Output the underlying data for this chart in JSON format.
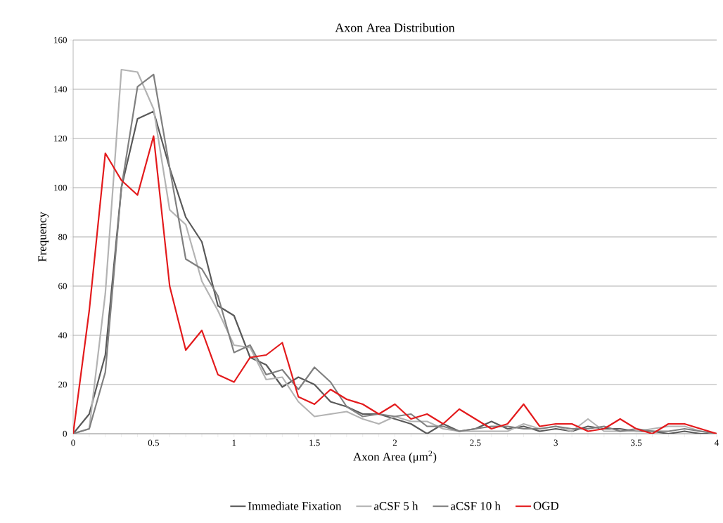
{
  "chart_data": {
    "type": "line",
    "title": "Axon Area Distribution",
    "xlabel": "Axon Area (μm$^{2}$)",
    "ylabel": "Frequency",
    "x": [
      0,
      0.1,
      0.2,
      0.3,
      0.4,
      0.5,
      0.6,
      0.7,
      0.8,
      0.9,
      1.0,
      1.1,
      1.2,
      1.3,
      1.4,
      1.5,
      1.6,
      1.7,
      1.8,
      1.9,
      2.0,
      2.1,
      2.2,
      2.3,
      2.4,
      2.5,
      2.6,
      2.7,
      2.8,
      2.9,
      3.0,
      3.1,
      3.2,
      3.3,
      3.4,
      3.5,
      3.6,
      3.7,
      3.8,
      3.9,
      4.0
    ],
    "series": [
      {
        "name": "Immediate Fixation",
        "color": "#595959",
        "values": [
          0,
          8,
          32,
          100,
          128,
          131,
          108,
          88,
          78,
          52,
          48,
          31,
          28,
          19,
          23,
          20,
          13,
          11,
          8,
          8,
          6,
          4,
          0,
          4,
          1,
          2,
          5,
          2,
          3,
          1,
          2,
          1,
          3,
          2,
          2,
          1,
          1,
          0,
          1,
          0,
          0
        ]
      },
      {
        "name": "aCSF 5 h",
        "color": "#b3b3b3",
        "values": [
          0,
          2,
          57,
          148,
          147,
          132,
          91,
          85,
          62,
          50,
          36,
          35,
          22,
          23,
          13,
          7,
          8,
          9,
          6,
          4,
          7,
          5,
          5,
          2,
          1,
          1,
          1,
          1,
          4,
          2,
          3,
          1,
          6,
          1,
          1,
          1,
          2,
          3,
          3,
          1,
          0
        ]
      },
      {
        "name": "aCSF 10 h",
        "color": "#808080",
        "values": [
          0,
          2,
          25,
          100,
          141,
          146,
          108,
          71,
          67,
          56,
          33,
          36,
          24,
          26,
          18,
          27,
          21,
          11,
          7,
          8,
          7,
          8,
          3,
          3,
          1,
          2,
          3,
          3,
          2,
          2,
          3,
          2,
          2,
          3,
          1,
          2,
          1,
          1,
          2,
          1,
          0
        ]
      },
      {
        "name": "OGD",
        "color": "#e31a1c",
        "values": [
          0,
          50,
          114,
          103,
          97,
          121,
          60,
          34,
          42,
          24,
          21,
          31,
          32,
          37,
          15,
          12,
          18,
          14,
          12,
          8,
          12,
          6,
          8,
          4,
          10,
          6,
          2,
          4,
          12,
          3,
          4,
          4,
          1,
          2,
          6,
          2,
          0,
          4,
          4,
          2,
          0
        ]
      }
    ],
    "xlim": [
      0,
      4
    ],
    "xticks": [
      0,
      0.5,
      1,
      1.5,
      2,
      2.5,
      3,
      3.5,
      4
    ],
    "ylim": [
      0,
      160
    ],
    "yticks": [
      0,
      20,
      40,
      60,
      80,
      100,
      120,
      140,
      160
    ],
    "grid": "y",
    "legend": "bottom",
    "marker": "none",
    "line_style": "solid"
  }
}
